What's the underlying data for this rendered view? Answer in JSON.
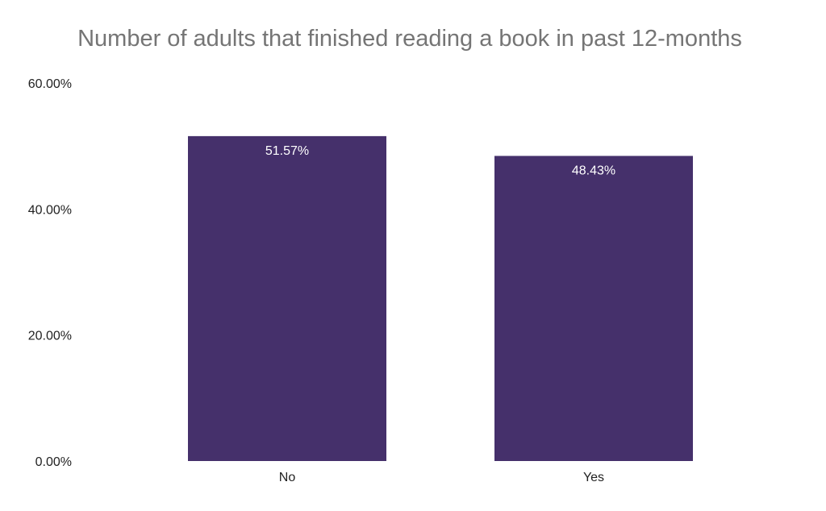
{
  "chart_data": {
    "type": "bar",
    "title": "Number of adults that finished reading a book in past 12-months",
    "categories": [
      "No",
      "Yes"
    ],
    "values": [
      51.57,
      48.43
    ],
    "data_labels": [
      "51.57%",
      "48.43%"
    ],
    "ylim": [
      0,
      60
    ],
    "yticks": [
      0,
      20,
      40,
      60
    ],
    "ytick_labels": [
      "0.00%",
      "20.00%",
      "40.00%",
      "60.00%"
    ],
    "xlabel": "",
    "ylabel": "",
    "grid": false,
    "legend": "none",
    "bar_color": "#45306b"
  }
}
